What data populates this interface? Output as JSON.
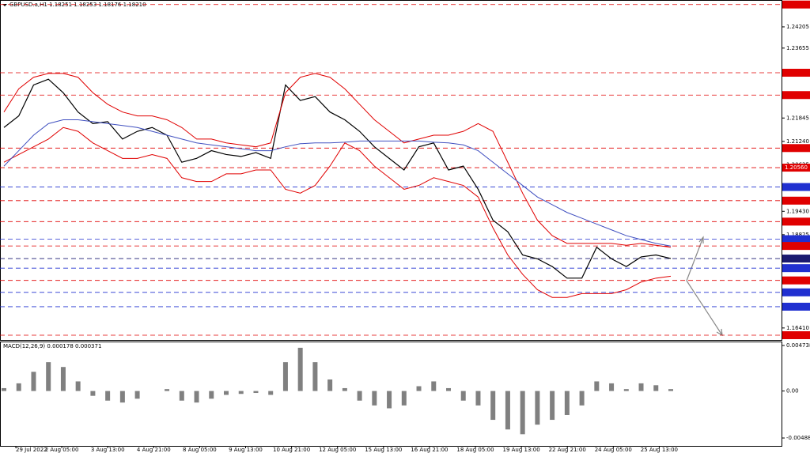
{
  "chart_data": {
    "type": "line",
    "title": "GBPUSD.a,H1  1.18251 1.18253 1.18176 1.18210",
    "indicator_label": "MACD(12,26,9) 0.000178 0.000371",
    "ylim": [
      1.161,
      1.249
    ],
    "yticks": [
      1.24205,
      1.23655,
      1.21845,
      {
        "value": 1.2124,
        "label": "1.21240"
      },
      1.20635,
      {
        "value": 1.1943,
        "label": "1.19430"
      },
      1.18825,
      {
        "value": 1.1641,
        "label": "1.16410"
      }
    ],
    "levels": [
      {
        "value": 1.24783,
        "color": "#e00000"
      },
      {
        "value": 1.23017,
        "color": "#e00000"
      },
      {
        "value": 1.22439,
        "color": "#e00000"
      },
      {
        "value": 1.21067,
        "color": "#e00000"
      },
      {
        "value": 1.2056,
        "label": "1.20560",
        "color": "#e00000"
      },
      {
        "value": 1.20059,
        "color": "#2030d0"
      },
      {
        "value": 1.19706,
        "color": "#e00000"
      },
      {
        "value": 1.19163,
        "color": "#e00000"
      },
      {
        "value": 1.18709,
        "color": "#2030d0"
      },
      {
        "value": 1.18533,
        "color": "#e00000"
      },
      {
        "value": 1.18207,
        "color": "#1a1a70"
      },
      {
        "value": 1.17959,
        "color": "#2030d0"
      },
      {
        "value": 1.17641,
        "color": "#e00000"
      },
      {
        "value": 1.17332,
        "color": "#2030d0"
      },
      {
        "value": 1.16961,
        "color": "#2030d0"
      },
      {
        "value": 1.16223,
        "color": "#e00000"
      }
    ],
    "time_labels": [
      "29 Jul 2022",
      "2 Aug 05:00",
      "3 Aug 13:00",
      "4 Aug 21:00",
      "8 Aug 05:00",
      "9 Aug 13:00",
      "10 Aug 21:00",
      "12 Aug 05:00",
      "15 Aug 13:00",
      "16 Aug 21:00",
      "18 Aug 05:00",
      "19 Aug 13:00",
      "22 Aug 21:00",
      "24 Aug 05:00",
      "25 Aug 13:00"
    ],
    "series": [
      {
        "color": "#000000",
        "values": [
          1.216,
          1.219,
          1.227,
          1.2285,
          1.225,
          1.22,
          1.217,
          1.2175,
          1.213,
          1.215,
          1.216,
          1.214,
          1.207,
          1.208,
          1.21,
          1.209,
          1.2085,
          1.2095,
          1.208,
          1.227,
          1.223,
          1.224,
          1.22,
          1.218,
          1.215,
          1.211,
          1.208,
          1.205,
          1.211,
          1.212,
          1.205,
          1.206,
          1.2,
          1.192,
          1.189,
          1.183,
          1.182,
          1.18,
          1.177,
          1.177,
          1.185,
          1.182,
          1.18,
          1.1825,
          1.183,
          1.1821
        ]
      },
      {
        "color": "#e00000",
        "values": [
          1.22,
          1.226,
          1.229,
          1.23,
          1.23,
          1.229,
          1.225,
          1.222,
          1.22,
          1.219,
          1.219,
          1.218,
          1.216,
          1.213,
          1.213,
          1.212,
          1.2115,
          1.211,
          1.212,
          1.225,
          1.229,
          1.23,
          1.229,
          1.226,
          1.222,
          1.218,
          1.215,
          1.212,
          1.213,
          1.214,
          1.214,
          1.215,
          1.217,
          1.215,
          1.207,
          1.199,
          1.192,
          1.188,
          1.186,
          1.186,
          1.186,
          1.186,
          1.1855,
          1.186,
          1.1855,
          1.185
        ]
      },
      {
        "color": "#e00000",
        "values": [
          1.207,
          1.209,
          1.211,
          1.213,
          1.216,
          1.215,
          1.212,
          1.21,
          1.208,
          1.208,
          1.209,
          1.208,
          1.203,
          1.202,
          1.202,
          1.204,
          1.204,
          1.205,
          1.205,
          1.2,
          1.199,
          1.201,
          1.206,
          1.212,
          1.21,
          1.206,
          1.203,
          1.2,
          1.201,
          1.203,
          1.202,
          1.201,
          1.198,
          1.19,
          1.183,
          1.178,
          1.174,
          1.172,
          1.172,
          1.173,
          1.173,
          1.173,
          1.174,
          1.176,
          1.177,
          1.1775
        ]
      },
      {
        "color": "#4050c0",
        "values": [
          1.206,
          1.21,
          1.214,
          1.217,
          1.218,
          1.218,
          1.2175,
          1.217,
          1.2165,
          1.216,
          1.215,
          1.214,
          1.213,
          1.212,
          1.2115,
          1.211,
          1.2105,
          1.21,
          1.21,
          1.211,
          1.2118,
          1.212,
          1.212,
          1.2122,
          1.2125,
          1.2125,
          1.2125,
          1.2125,
          1.2125,
          1.2122,
          1.212,
          1.2115,
          1.21,
          1.207,
          1.204,
          1.201,
          1.198,
          1.196,
          1.194,
          1.1925,
          1.191,
          1.1895,
          1.188,
          1.187,
          1.186,
          1.1853
        ]
      }
    ],
    "macd": {
      "color": "#808080",
      "ylim": [
        -0.00571,
        0.00515
      ],
      "yticks": [
        0.004738,
        {
          "value": 0,
          "label": "0.00"
        },
        -0.004889
      ],
      "values": [
        0.0003,
        0.0008,
        0.002,
        0.003,
        0.0025,
        0.001,
        -0.0005,
        -0.001,
        -0.0012,
        -0.0008,
        0,
        0.0002,
        -0.001,
        -0.0012,
        -0.0008,
        -0.0004,
        -0.0003,
        -0.0002,
        -0.0004,
        0.003,
        0.0045,
        0.003,
        0.0012,
        0.0003,
        -0.001,
        -0.0015,
        -0.0018,
        -0.0015,
        0.0005,
        0.001,
        0.0003,
        -0.001,
        -0.0015,
        -0.003,
        -0.004,
        -0.0045,
        -0.0035,
        -0.003,
        -0.0025,
        -0.0015,
        0.001,
        0.0008,
        0.0002,
        0.0008,
        0.0006,
        0.0002
      ]
    }
  }
}
